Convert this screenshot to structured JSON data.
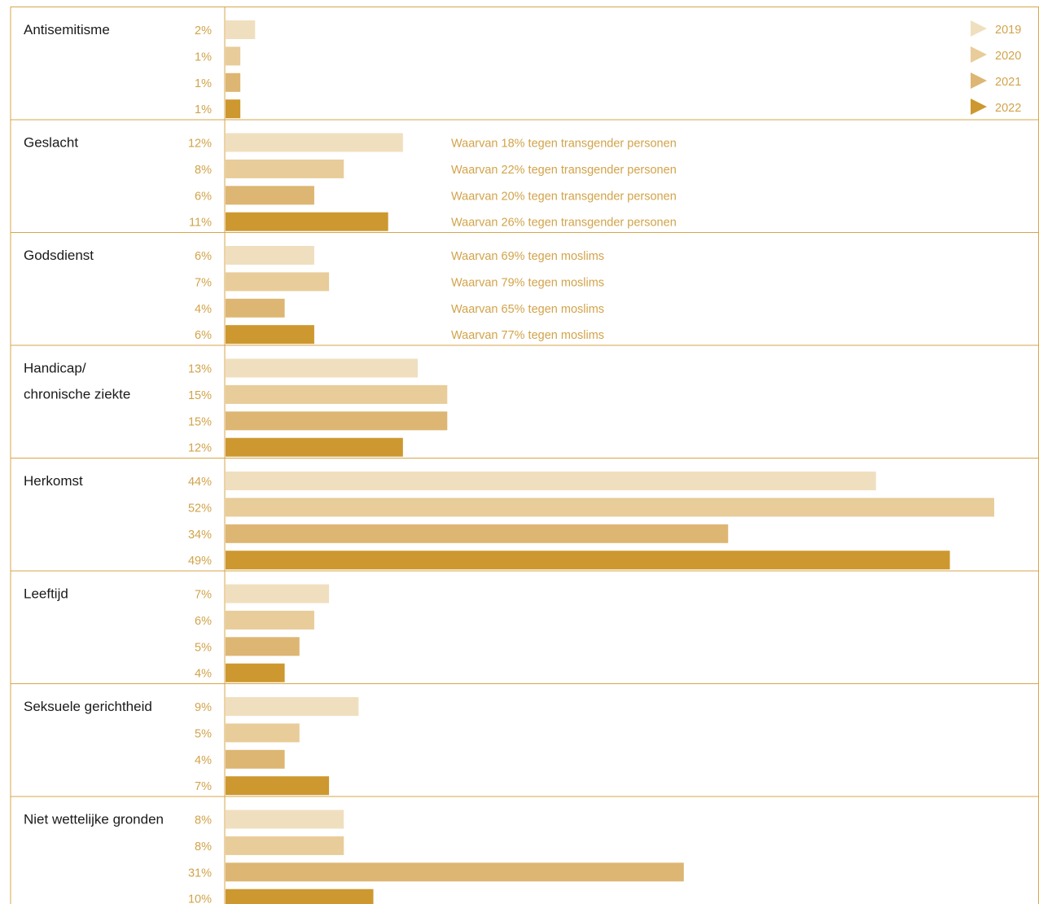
{
  "colors": {
    "2019": "#f0dfbf",
    "2020": "#e8cc99",
    "2021": "#ddb673",
    "2022": "#cd982f",
    "percent_text": "#d2a34a",
    "note_text": "#d2a34a",
    "category_text": "#1a1a1a",
    "lines": "#d7a64b"
  },
  "chart_data": {
    "type": "bar",
    "orientation": "horizontal",
    "xlim": [
      0,
      52
    ],
    "legend": {
      "placement": "top-right",
      "entries": [
        "2019",
        "2020",
        "2021",
        "2022"
      ]
    },
    "series_names": [
      "2019",
      "2020",
      "2021",
      "2022"
    ],
    "groups": [
      {
        "category": "Antisemitisme",
        "values": [
          2,
          1,
          1,
          1
        ],
        "labels": [
          "2%",
          "1%",
          "1%",
          "1%"
        ],
        "notes": [
          "",
          "",
          "",
          ""
        ]
      },
      {
        "category": "Geslacht",
        "values": [
          12,
          8,
          6,
          11
        ],
        "labels": [
          "12%",
          "8%",
          "6%",
          "11%"
        ],
        "notes": [
          "Waarvan 18% tegen transgender personen",
          "Waarvan 22% tegen transgender personen",
          "Waarvan 20% tegen transgender personen",
          "Waarvan 26% tegen transgender personen"
        ]
      },
      {
        "category": "Godsdienst",
        "values": [
          6,
          7,
          4,
          6
        ],
        "labels": [
          "6%",
          "7%",
          "4%",
          "6%"
        ],
        "notes": [
          "Waarvan 69% tegen moslims",
          "Waarvan 79% tegen moslims",
          "Waarvan 65% tegen moslims",
          "Waarvan 77% tegen moslims"
        ]
      },
      {
        "category": "Handicap/\nchronische ziekte",
        "values": [
          13,
          15,
          15,
          12
        ],
        "labels": [
          "13%",
          "15%",
          "15%",
          "12%"
        ],
        "notes": [
          "",
          "",
          "",
          ""
        ]
      },
      {
        "category": "Herkomst",
        "values": [
          44,
          52,
          34,
          49
        ],
        "labels": [
          "44%",
          "52%",
          "34%",
          "49%"
        ],
        "notes": [
          "",
          "",
          "",
          ""
        ]
      },
      {
        "category": "Leeftijd",
        "values": [
          7,
          6,
          5,
          4
        ],
        "labels": [
          "7%",
          "6%",
          "5%",
          "4%"
        ],
        "notes": [
          "",
          "",
          "",
          ""
        ]
      },
      {
        "category": "Seksuele gerichtheid",
        "values": [
          9,
          5,
          4,
          7
        ],
        "labels": [
          "9%",
          "5%",
          "4%",
          "7%"
        ],
        "notes": [
          "",
          "",
          "",
          ""
        ]
      },
      {
        "category": "Niet wettelijke gronden",
        "values": [
          8,
          8,
          31,
          10
        ],
        "labels": [
          "8%",
          "8%",
          "31%",
          "10%"
        ],
        "notes": [
          "",
          "",
          "",
          ""
        ]
      }
    ]
  }
}
